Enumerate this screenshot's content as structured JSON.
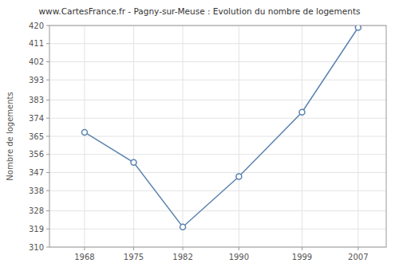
{
  "chart_data": {
    "type": "line",
    "title": "www.CartesFrance.fr - Pagny-sur-Meuse : Evolution du nombre de logements",
    "ylabel": "Nombre de logements",
    "x": [
      1968,
      1975,
      1982,
      1990,
      1999,
      2007
    ],
    "values": [
      367,
      352,
      320,
      345,
      377,
      419
    ],
    "color": "#5b83b0",
    "marker": "circle",
    "xlim": [
      1963,
      2011
    ],
    "xticks": [
      1968,
      1975,
      1982,
      1990,
      1999,
      2007
    ],
    "ylim": [
      310,
      420
    ],
    "yticks": [
      310,
      319,
      328,
      338,
      347,
      356,
      365,
      374,
      383,
      393,
      402,
      411,
      420
    ],
    "grid": true
  }
}
